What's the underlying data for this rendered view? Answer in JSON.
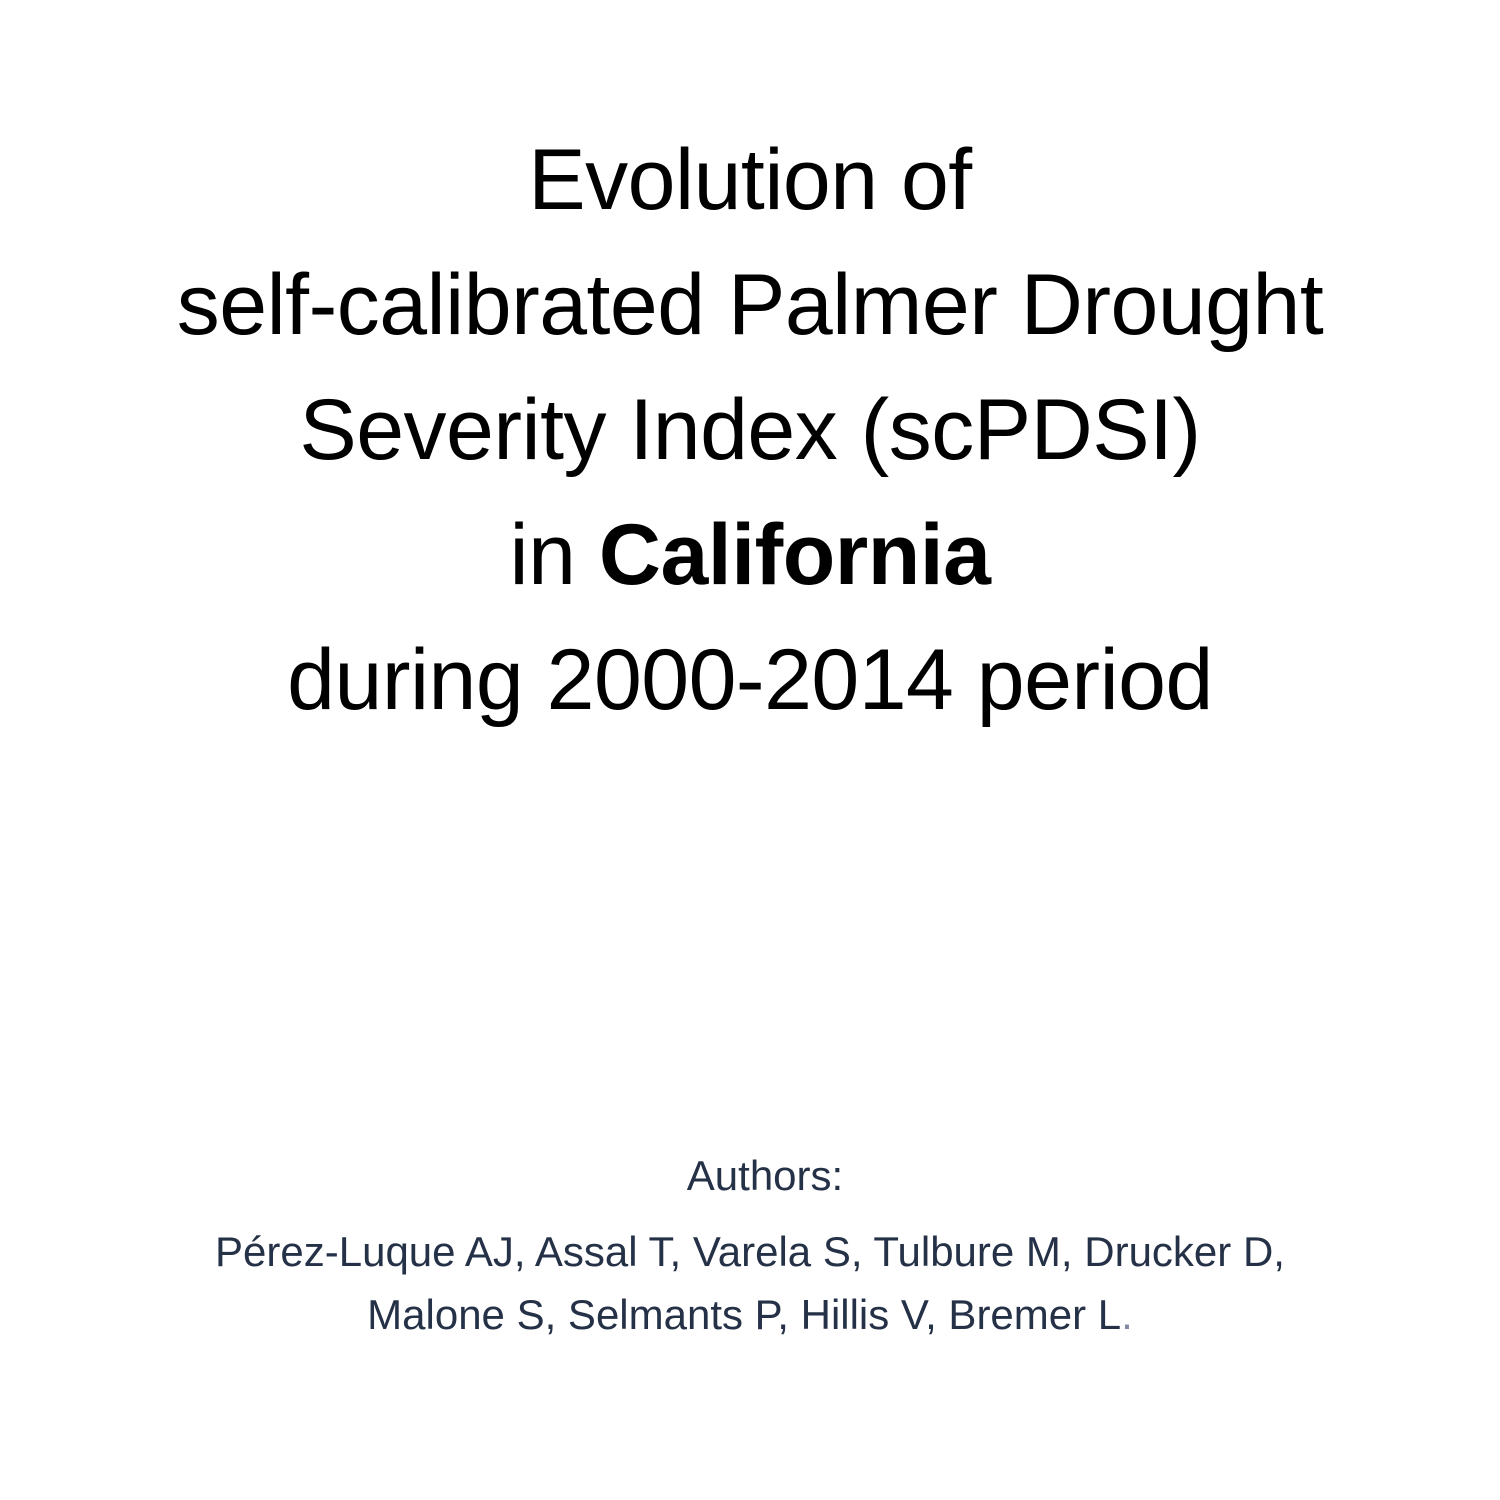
{
  "title": {
    "line1": "Evolution of",
    "line2": "self-calibrated Palmer Drought",
    "line3": "Severity Index (scPDSI)",
    "line4_prefix": "in ",
    "line4_bold": "California",
    "line5": "during 2000-2014 period"
  },
  "authors": {
    "label": "Authors:",
    "line1": "Pérez-Luque AJ, Assal T, Varela S, Tulbure M, Drucker D,",
    "line2": "Malone S, Selmants P, Hillis V, Bremer L",
    "line2_end": "."
  }
}
